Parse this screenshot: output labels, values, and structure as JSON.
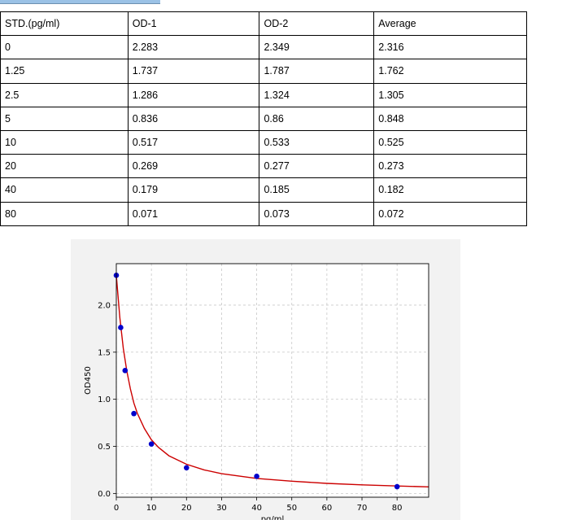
{
  "table": {
    "headers": [
      "STD.(pg/ml)",
      "OD-1",
      "OD-2",
      "Average"
    ],
    "rows": [
      [
        "0",
        "2.283",
        "2.349",
        "2.316"
      ],
      [
        "1.25",
        "1.737",
        "1.787",
        "1.762"
      ],
      [
        "2.5",
        "1.286",
        "1.324",
        "1.305"
      ],
      [
        "5",
        "0.836",
        "0.86",
        "0.848"
      ],
      [
        "10",
        "0.517",
        "0.533",
        "0.525"
      ],
      [
        "20",
        "0.269",
        "0.277",
        "0.273"
      ],
      [
        "40",
        "0.179",
        "0.185",
        "0.182"
      ],
      [
        "80",
        "0.071",
        "0.073",
        "0.072"
      ]
    ]
  },
  "chart_data": {
    "type": "scatter",
    "title": "",
    "xlabel": "pg/ml",
    "ylabel": "OD450",
    "xlim": [
      0,
      89
    ],
    "ylim": [
      -0.04,
      2.44
    ],
    "xticks": [
      0,
      10,
      20,
      30,
      40,
      50,
      60,
      70,
      80
    ],
    "yticks": [
      0.0,
      0.5,
      1.0,
      1.5,
      2.0
    ],
    "ytick_labels": [
      "0.0",
      "0.5",
      "1.0",
      "1.5",
      "2.0"
    ],
    "grid": true,
    "points": {
      "x": [
        0,
        1.25,
        2.5,
        5,
        10,
        20,
        40,
        80
      ],
      "y": [
        2.316,
        1.762,
        1.305,
        0.848,
        0.525,
        0.273,
        0.182,
        0.072
      ],
      "color": "#0000cc"
    },
    "fit_curve": {
      "x": [
        0,
        1,
        2,
        3,
        4,
        5,
        6,
        8,
        10,
        12,
        15,
        20,
        25,
        30,
        40,
        50,
        60,
        70,
        80,
        89
      ],
      "y": [
        2.316,
        1.87,
        1.54,
        1.3,
        1.11,
        0.96,
        0.85,
        0.69,
        0.57,
        0.49,
        0.4,
        0.31,
        0.25,
        0.21,
        0.16,
        0.13,
        0.107,
        0.091,
        0.079,
        0.07
      ],
      "color": "#cc0000"
    }
  }
}
